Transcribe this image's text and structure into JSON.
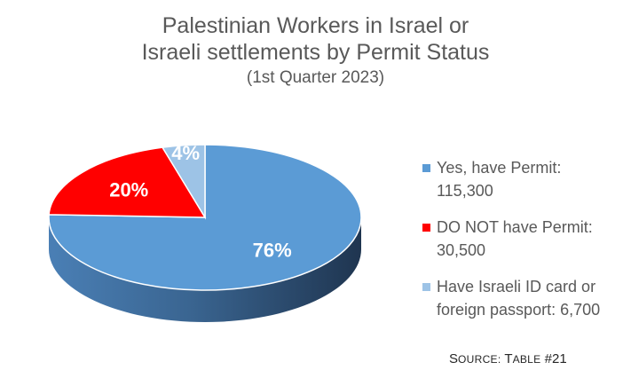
{
  "chart_data": {
    "type": "pie",
    "title": "Palestinian Workers in Israel or",
    "title_line2": "Israeli settlements by Permit Status",
    "subtitle": "(1st Quarter 2023)",
    "slices": [
      {
        "name": "Yes, have Permit:",
        "value_label": "115,300",
        "value": 115300,
        "percent_label": "76%",
        "color": "#5b9bd5"
      },
      {
        "name": "DO NOT have Permit:",
        "value_label": "30,500",
        "value": 30500,
        "percent_label": "20%",
        "color": "#ff0000"
      },
      {
        "name": "Have Israeli ID card or",
        "value_label": "foreign passport: 6,700",
        "value": 6700,
        "percent_label": "4%",
        "color": "#9dc3e6"
      }
    ],
    "legend_position": "right",
    "style": "3d"
  },
  "source": {
    "prefix_initial": "S",
    "prefix_rest": "OURCE:",
    "table_initial": "T",
    "table_rest": "ABLE",
    "table_number": "#21"
  }
}
